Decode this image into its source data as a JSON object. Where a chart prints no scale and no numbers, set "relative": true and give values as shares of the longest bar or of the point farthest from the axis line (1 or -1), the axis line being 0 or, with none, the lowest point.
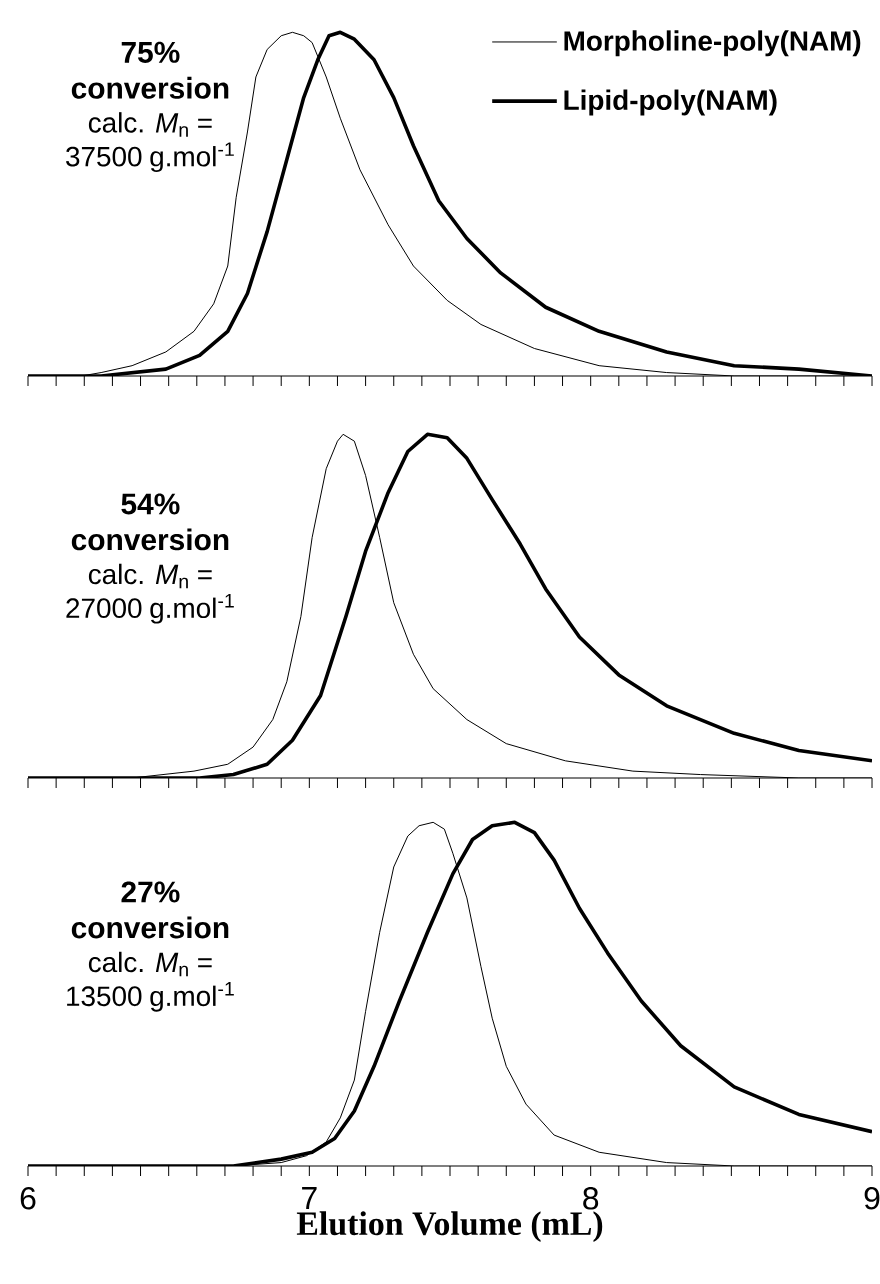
{
  "chart_data": [
    {
      "type": "line",
      "relative": true,
      "legend": "top right",
      "tick_labels": false,
      "marker": "none",
      "line_style": "solid",
      "annotations": [
        "75% conversion",
        "calc. *M*$_{n}$ = 37500 g.mol$^{-1}$"
      ],
      "xlim": [
        6,
        9
      ],
      "xticks": [
        6,
        {
          "value": 6.1,
          "label": null
        },
        {
          "value": 6.2,
          "label": null
        },
        {
          "value": 6.3,
          "label": null
        },
        {
          "value": 6.4,
          "label": null
        },
        {
          "value": 6.5,
          "label": null
        },
        {
          "value": 6.6,
          "label": null
        },
        {
          "value": 6.7,
          "label": null
        },
        {
          "value": 6.8,
          "label": null
        },
        {
          "value": 6.9,
          "label": null
        },
        7,
        {
          "value": 7.1,
          "label": null
        },
        {
          "value": 7.2,
          "label": null
        },
        {
          "value": 7.3,
          "label": null
        },
        {
          "value": 7.4,
          "label": null
        },
        {
          "value": 7.5,
          "label": null
        },
        {
          "value": 7.6,
          "label": null
        },
        {
          "value": 7.7,
          "label": null
        },
        {
          "value": 7.8,
          "label": null
        },
        {
          "value": 7.9,
          "label": null
        },
        8,
        {
          "value": 8.1,
          "label": null
        },
        {
          "value": 8.2,
          "label": null
        },
        {
          "value": 8.3,
          "label": null
        },
        {
          "value": 8.4,
          "label": null
        },
        {
          "value": 8.5,
          "label": null
        },
        {
          "value": 8.6,
          "label": null
        },
        {
          "value": 8.7,
          "label": null
        },
        {
          "value": 8.8,
          "label": null
        },
        {
          "value": 8.9,
          "label": null
        },
        9
      ],
      "series": [
        {
          "name": "Morpholine-poly(NAM)",
          "color": "#000000",
          "x": [
            6,
            6.19,
            6.26,
            6.37,
            6.49,
            6.59,
            6.66,
            6.71,
            6.74,
            6.78,
            6.81,
            6.85,
            6.9,
            6.94,
            6.98,
            7.01,
            7.06,
            7.11,
            7.18,
            7.28,
            7.37,
            7.49,
            7.61,
            7.8,
            8.03,
            8.27,
            8.51,
            8.98
          ],
          "values": [
            0,
            0,
            0.01,
            0.03,
            0.07,
            0.13,
            0.21,
            0.32,
            0.52,
            0.71,
            0.87,
            0.95,
            0.99,
            1,
            0.99,
            0.97,
            0.87,
            0.75,
            0.6,
            0.44,
            0.32,
            0.22,
            0.15,
            0.08,
            0.03,
            0.01,
            0,
            0
          ]
        },
        {
          "name": "Lipid-poly(NAM)",
          "color": "#000000",
          "x": [
            6,
            6.26,
            6.49,
            6.61,
            6.71,
            6.78,
            6.85,
            6.92,
            6.98,
            7.03,
            7.07,
            7.11,
            7.16,
            7.23,
            7.3,
            7.37,
            7.46,
            7.56,
            7.68,
            7.84,
            8.03,
            8.27,
            8.51,
            8.74,
            9
          ],
          "values": [
            0,
            0,
            0.02,
            0.06,
            0.13,
            0.24,
            0.42,
            0.63,
            0.81,
            0.92,
            0.99,
            1,
            0.98,
            0.92,
            0.81,
            0.67,
            0.51,
            0.4,
            0.3,
            0.2,
            0.13,
            0.07,
            0.03,
            0.02,
            0
          ]
        }
      ]
    },
    {
      "type": "line",
      "relative": true,
      "tick_labels": false,
      "marker": "none",
      "line_style": "solid",
      "annotations": [
        "54% conversion",
        "calc. *M*$_{n}$ = 27000 g.mol$^{-1}$"
      ],
      "xlim": [
        6,
        9
      ],
      "xticks": [
        6,
        {
          "value": 6.1,
          "label": null
        },
        {
          "value": 6.2,
          "label": null
        },
        {
          "value": 6.3,
          "label": null
        },
        {
          "value": 6.4,
          "label": null
        },
        {
          "value": 6.5,
          "label": null
        },
        {
          "value": 6.6,
          "label": null
        },
        {
          "value": 6.7,
          "label": null
        },
        {
          "value": 6.8,
          "label": null
        },
        {
          "value": 6.9,
          "label": null
        },
        7,
        {
          "value": 7.1,
          "label": null
        },
        {
          "value": 7.2,
          "label": null
        },
        {
          "value": 7.3,
          "label": null
        },
        {
          "value": 7.4,
          "label": null
        },
        {
          "value": 7.5,
          "label": null
        },
        {
          "value": 7.6,
          "label": null
        },
        {
          "value": 7.7,
          "label": null
        },
        {
          "value": 7.8,
          "label": null
        },
        {
          "value": 7.9,
          "label": null
        },
        8,
        {
          "value": 8.1,
          "label": null
        },
        {
          "value": 8.2,
          "label": null
        },
        {
          "value": 8.3,
          "label": null
        },
        {
          "value": 8.4,
          "label": null
        },
        {
          "value": 8.5,
          "label": null
        },
        {
          "value": 8.6,
          "label": null
        },
        {
          "value": 8.7,
          "label": null
        },
        {
          "value": 8.8,
          "label": null
        },
        {
          "value": 8.9,
          "label": null
        },
        9
      ],
      "series": [
        {
          "color": "#000000",
          "x": [
            6,
            6.37,
            6.59,
            6.71,
            6.8,
            6.87,
            6.92,
            6.97,
            7.01,
            7.06,
            7.1,
            7.12,
            7.16,
            7.2,
            7.25,
            7.3,
            7.37,
            7.44,
            7.56,
            7.7,
            7.91,
            8.15,
            8.39,
            8.74,
            9
          ],
          "values": [
            0,
            0,
            0.02,
            0.04,
            0.09,
            0.17,
            0.28,
            0.47,
            0.7,
            0.9,
            0.98,
            1,
            0.98,
            0.88,
            0.7,
            0.51,
            0.36,
            0.26,
            0.17,
            0.1,
            0.05,
            0.02,
            0.01,
            0,
            0
          ]
        },
        {
          "color": "#000000",
          "x": [
            6,
            6.61,
            6.73,
            6.85,
            6.94,
            7.04,
            7.13,
            7.2,
            7.28,
            7.35,
            7.42,
            7.49,
            7.56,
            7.65,
            7.75,
            7.84,
            7.96,
            8.1,
            8.27,
            8.51,
            8.74,
            9
          ],
          "values": [
            0,
            0,
            0.01,
            0.04,
            0.11,
            0.24,
            0.47,
            0.66,
            0.83,
            0.95,
            1,
            0.99,
            0.93,
            0.81,
            0.68,
            0.55,
            0.41,
            0.3,
            0.21,
            0.13,
            0.08,
            0.05
          ]
        }
      ]
    },
    {
      "type": "line",
      "relative": true,
      "marker": "none",
      "line_style": "solid",
      "xlabel": "Elution Volume (mL)",
      "annotations": [
        "27% conversion",
        "calc. *M*$_{n}$ = 13500 g.mol$^{-1}$"
      ],
      "xlim": [
        6,
        9
      ],
      "xticks": [
        6,
        {
          "value": 6.1,
          "label": null
        },
        {
          "value": 6.2,
          "label": null
        },
        {
          "value": 6.3,
          "label": null
        },
        {
          "value": 6.4,
          "label": null
        },
        {
          "value": 6.5,
          "label": null
        },
        {
          "value": 6.6,
          "label": null
        },
        {
          "value": 6.7,
          "label": null
        },
        {
          "value": 6.8,
          "label": null
        },
        {
          "value": 6.9,
          "label": null
        },
        7,
        {
          "value": 7.1,
          "label": null
        },
        {
          "value": 7.2,
          "label": null
        },
        {
          "value": 7.3,
          "label": null
        },
        {
          "value": 7.4,
          "label": null
        },
        {
          "value": 7.5,
          "label": null
        },
        {
          "value": 7.6,
          "label": null
        },
        {
          "value": 7.7,
          "label": null
        },
        {
          "value": 7.8,
          "label": null
        },
        {
          "value": 7.9,
          "label": null
        },
        8,
        {
          "value": 8.1,
          "label": null
        },
        {
          "value": 8.2,
          "label": null
        },
        {
          "value": 8.3,
          "label": null
        },
        {
          "value": 8.4,
          "label": null
        },
        {
          "value": 8.5,
          "label": null
        },
        {
          "value": 8.6,
          "label": null
        },
        {
          "value": 8.7,
          "label": null
        },
        {
          "value": 8.8,
          "label": null
        },
        {
          "value": 8.9,
          "label": null
        },
        9
      ],
      "series": [
        {
          "color": "#000000",
          "x": [
            6,
            6.73,
            6.9,
            6.99,
            7.06,
            7.11,
            7.16,
            7.2,
            7.25,
            7.3,
            7.35,
            7.39,
            7.44,
            7.48,
            7.51,
            7.56,
            7.61,
            7.65,
            7.7,
            7.77,
            7.87,
            8.03,
            8.27,
            8.51,
            8.74,
            9
          ],
          "values": [
            0,
            0,
            0.01,
            0.03,
            0.07,
            0.14,
            0.25,
            0.45,
            0.68,
            0.87,
            0.96,
            0.99,
            1,
            0.98,
            0.91,
            0.78,
            0.58,
            0.43,
            0.29,
            0.18,
            0.09,
            0.04,
            0.01,
            0,
            0,
            0
          ]
        },
        {
          "color": "#000000",
          "x": [
            6,
            6.73,
            6.9,
            7.01,
            7.09,
            7.16,
            7.23,
            7.32,
            7.42,
            7.51,
            7.58,
            7.65,
            7.73,
            7.8,
            7.87,
            7.96,
            8.06,
            8.18,
            8.32,
            8.51,
            8.74,
            9
          ],
          "values": [
            0,
            0,
            0.02,
            0.04,
            0.08,
            0.16,
            0.29,
            0.48,
            0.68,
            0.85,
            0.95,
            0.99,
            1,
            0.97,
            0.89,
            0.75,
            0.62,
            0.48,
            0.35,
            0.23,
            0.15,
            0.1
          ]
        }
      ]
    }
  ]
}
